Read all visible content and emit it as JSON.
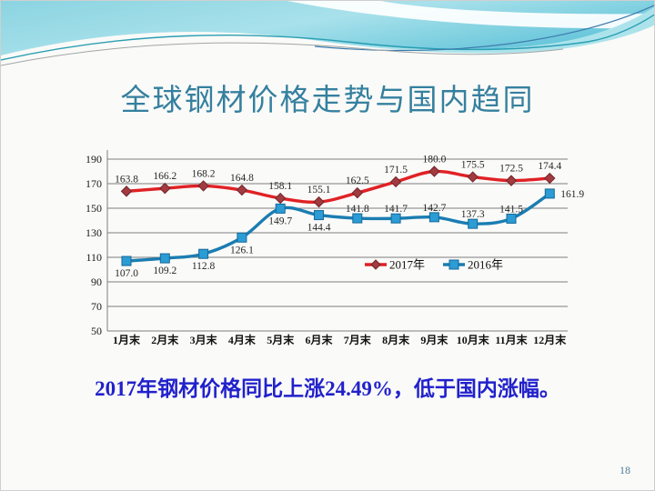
{
  "slide": {
    "title": "全球钢材价格走势与国内趋同",
    "caption": "2017年钢材价格同比上涨24.49%，低于国内涨幅。",
    "page_number": "18"
  },
  "theme": {
    "title_color": "#35809f",
    "caption_color": "#2121cc",
    "page_number_color": "#4d7a96",
    "slide_bg": "#fafaf8",
    "band_cyan_light": "#a8e1eb",
    "band_cyan_dark": "#4fbcd4"
  },
  "chart_data": {
    "type": "line",
    "title": "",
    "xlabel": "",
    "ylabel": "",
    "categories": [
      "1月末",
      "2月末",
      "3月末",
      "4月末",
      "5月末",
      "6月末",
      "7月末",
      "8月末",
      "9月末",
      "10月末",
      "11月末",
      "12月末"
    ],
    "series": [
      {
        "name": "2017年",
        "color": "#e02125",
        "marker": "diamond",
        "marker_fill": "#a23a40",
        "marker_stroke": "#70262b",
        "values": [
          163.8,
          166.2,
          168.2,
          164.8,
          158.1,
          155.1,
          162.5,
          171.5,
          180.0,
          175.5,
          172.5,
          174.4
        ],
        "labels": [
          "163.8",
          "166.2",
          "168.2",
          "164.8",
          "158.1",
          "155.1",
          "162.5",
          "171.5",
          "180.0",
          "175.5",
          "172.5",
          "174.4"
        ],
        "label_placement": [
          "above",
          "above",
          "above",
          "above",
          "above",
          "above",
          "above",
          "above",
          "above",
          "above",
          "above",
          "above"
        ]
      },
      {
        "name": "2016年",
        "color": "#1a7db2",
        "marker": "square",
        "marker_fill": "#2b9cd4",
        "marker_stroke": "#15689a",
        "values": [
          107.0,
          109.2,
          112.8,
          126.1,
          149.7,
          144.4,
          141.8,
          141.7,
          142.7,
          137.3,
          141.5,
          161.9
        ],
        "labels": [
          "107.0",
          "109.2",
          "112.8",
          "126.1",
          "149.7",
          "144.4",
          "141.8",
          "141.7",
          "142.7",
          "137.3",
          "141.5",
          "161.9"
        ],
        "label_placement": [
          "below",
          "below",
          "below",
          "below",
          "below",
          "below",
          "above",
          "above",
          "above",
          "above",
          "above",
          "right"
        ]
      }
    ],
    "ylim": [
      50,
      190
    ],
    "yticks": [
      50,
      70,
      90,
      110,
      130,
      150,
      170,
      190
    ],
    "grid": "horizontal",
    "gridline_color": "#7f7f7f",
    "legend_position": "inside-bottom-center",
    "legend_items": [
      "2017年",
      "2016年"
    ]
  }
}
